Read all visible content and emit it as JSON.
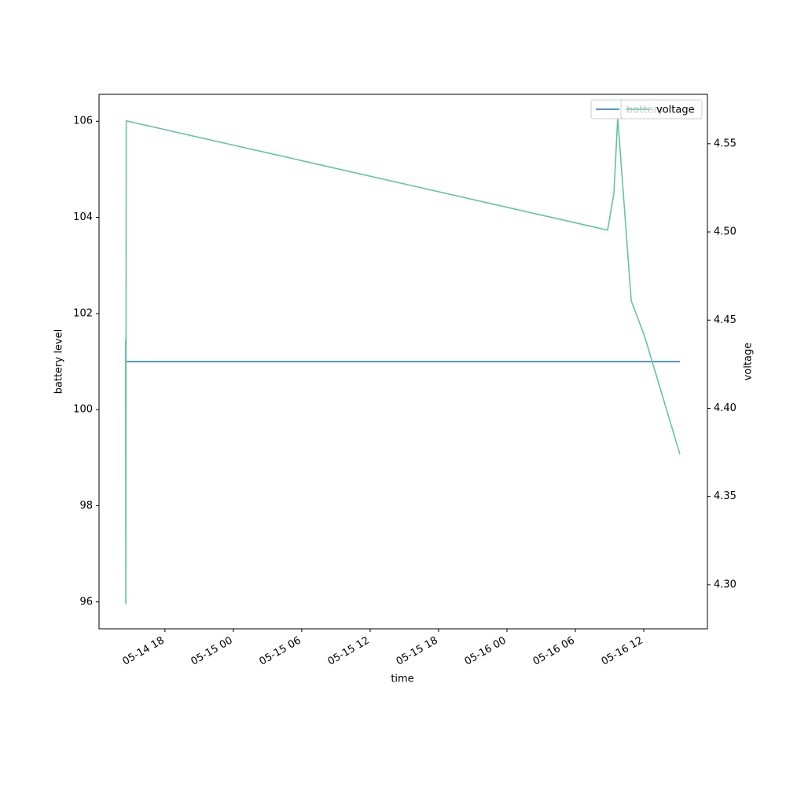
{
  "chart_data": {
    "type": "line",
    "x_label": "time",
    "y_label": "battery level",
    "y2_label": "voltage",
    "xlim": [
      "05-14 12:13",
      "05-16 17:35"
    ],
    "xticks": [
      "05-14 18",
      "05-15 00",
      "05-15 06",
      "05-15 12",
      "05-15 18",
      "05-16 00",
      "05-16 06",
      "05-16 12"
    ],
    "ylim": [
      95.44,
      106.56
    ],
    "yticks": [
      96,
      98,
      100,
      102,
      104,
      106
    ],
    "y2lim": [
      4.275,
      4.578
    ],
    "y2ticks": [
      {
        "value": 4.3,
        "label": "4.30"
      },
      {
        "value": 4.35,
        "label": "4.35"
      },
      {
        "value": 4.4,
        "label": "4.40"
      },
      {
        "value": 4.45,
        "label": "4.45"
      },
      {
        "value": 4.5,
        "label": "4.50"
      },
      {
        "value": 4.55,
        "label": "4.55"
      }
    ],
    "legend": "upper right",
    "series": [
      {
        "name": "battery",
        "color": "#1f77b4",
        "axis": "y",
        "x": [
          "05-14 14:33",
          "05-16 15:10"
        ],
        "values": [
          101,
          101
        ]
      },
      {
        "name": "voltage",
        "color": "#66c2a5",
        "axis": "y2",
        "x": [
          "05-14 14:33",
          "05-14 14:34",
          "05-14 14:36",
          "05-16 08:50",
          "05-16 09:23",
          "05-16 09:43",
          "05-16 10:54",
          "05-16 12:04",
          "05-16 15:10"
        ],
        "values": [
          4.439,
          4.289,
          4.563,
          4.501,
          4.522,
          4.565,
          4.461,
          4.441,
          4.374
        ]
      }
    ]
  }
}
